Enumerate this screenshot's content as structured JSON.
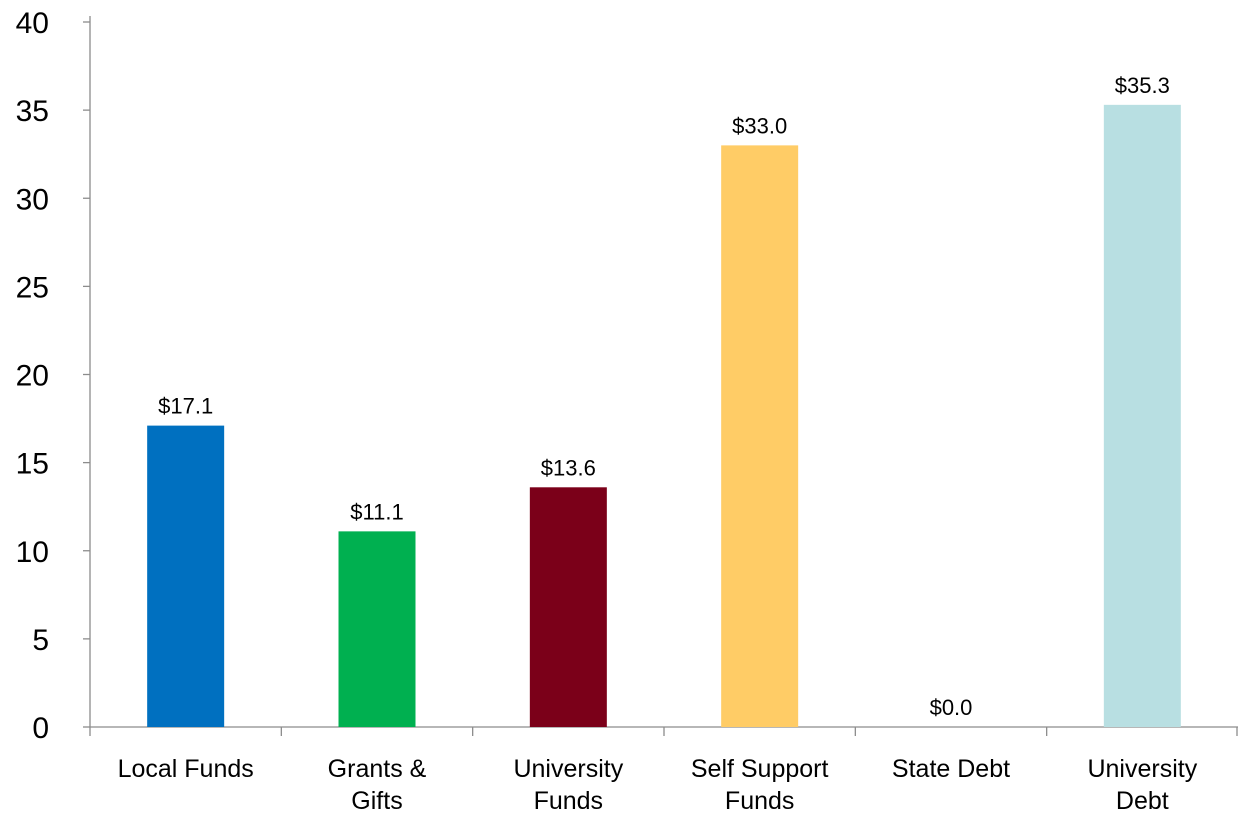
{
  "chart_data": {
    "type": "bar",
    "title": "",
    "xlabel": "",
    "ylabel": "",
    "categories": [
      [
        "Local Funds"
      ],
      [
        "Grants &",
        "Gifts"
      ],
      [
        "University",
        "Funds"
      ],
      [
        "Self Support",
        "Funds"
      ],
      [
        "State Debt"
      ],
      [
        "University",
        "Debt"
      ]
    ],
    "values": [
      17.1,
      11.1,
      13.6,
      33.0,
      0.0,
      35.3
    ],
    "data_labels": [
      "$17.1",
      "$11.1",
      "$13.6",
      "$33.0",
      "$0.0",
      "$35.3"
    ],
    "colors": [
      "#0070c0",
      "#00b050",
      "#7b0019",
      "#ffcc66",
      "#c0c0c0",
      "#b8dfe2"
    ],
    "ylim": [
      0,
      40
    ],
    "yticks": [
      0,
      5,
      10,
      15,
      20,
      25,
      30,
      35,
      40
    ],
    "grid": false,
    "legend": "none"
  }
}
